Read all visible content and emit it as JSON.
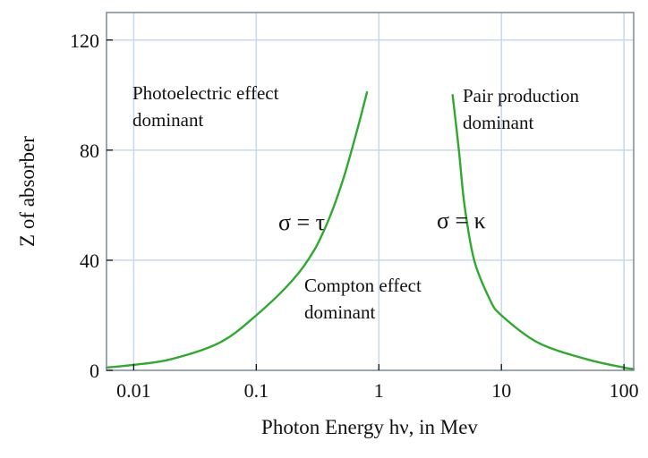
{
  "chart_data": {
    "type": "line",
    "xlabel": "Photon Energy hν, in Mev",
    "ylabel": "Z of absorber",
    "xscale": "log",
    "xlim": [
      0.006,
      120
    ],
    "ylim": [
      0,
      130
    ],
    "grid": true,
    "x_ticks": [
      {
        "value": 0.01,
        "label": "0.01"
      },
      {
        "value": 0.1,
        "label": "0.1"
      },
      {
        "value": 1,
        "label": "1"
      },
      {
        "value": 10,
        "label": "10"
      },
      {
        "value": 100,
        "label": "100"
      }
    ],
    "y_ticks": [
      {
        "value": 0,
        "label": "0"
      },
      {
        "value": 40,
        "label": "40"
      },
      {
        "value": 80,
        "label": "80"
      },
      {
        "value": 120,
        "label": "120"
      }
    ],
    "series": [
      {
        "label": "σ = τ",
        "color": "#2eaa2e",
        "points": [
          [
            0.006,
            1
          ],
          [
            0.01,
            2
          ],
          [
            0.02,
            4
          ],
          [
            0.05,
            10
          ],
          [
            0.1,
            20
          ],
          [
            0.2,
            33
          ],
          [
            0.3,
            44
          ],
          [
            0.4,
            56
          ],
          [
            0.5,
            68
          ],
          [
            0.6,
            80
          ],
          [
            0.7,
            91
          ],
          [
            0.8,
            101
          ]
        ]
      },
      {
        "label": "σ = κ",
        "color": "#2eaa2e",
        "points": [
          [
            4,
            100
          ],
          [
            4.5,
            80
          ],
          [
            5,
            60
          ],
          [
            6,
            40
          ],
          [
            8,
            26
          ],
          [
            10,
            20
          ],
          [
            20,
            10
          ],
          [
            50,
            4
          ],
          [
            100,
            1
          ],
          [
            120,
            0.5
          ]
        ]
      }
    ],
    "annotations": [
      {
        "lines": [
          "Photoelectric effect",
          "dominant"
        ]
      },
      {
        "lines": [
          "Pair production",
          "dominant"
        ]
      },
      {
        "lines": [
          "Compton effect",
          "dominant"
        ]
      }
    ]
  }
}
